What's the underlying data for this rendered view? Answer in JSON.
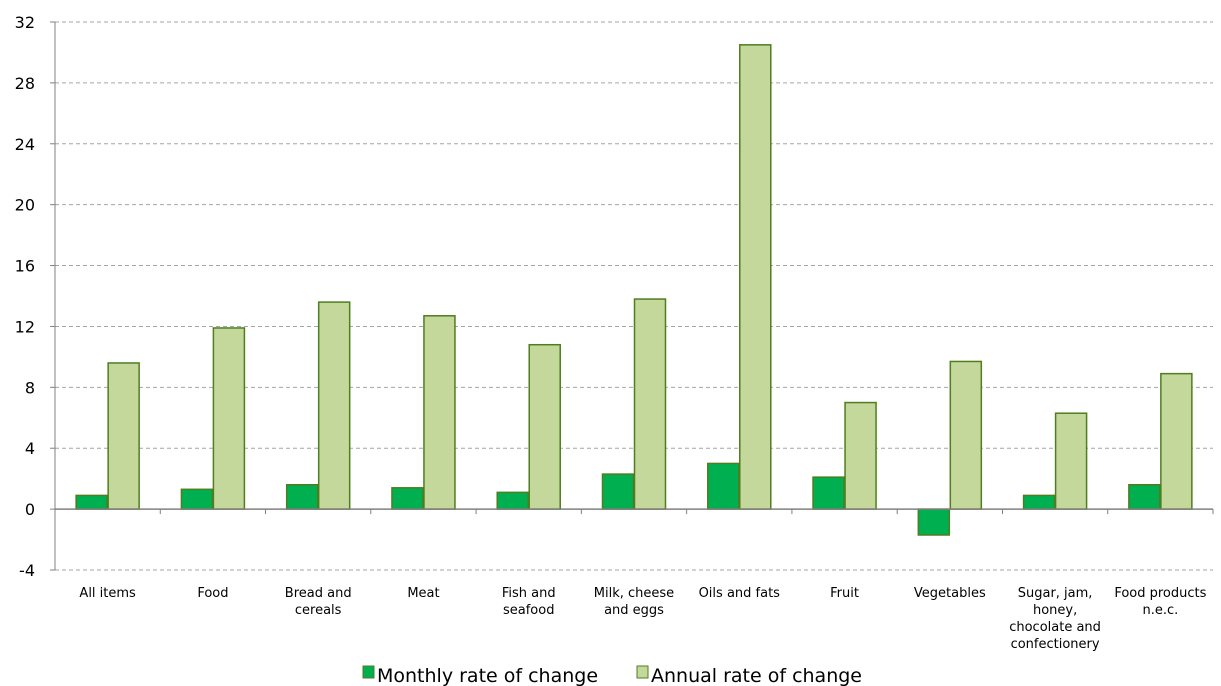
{
  "chart_data": {
    "type": "bar",
    "categories": [
      [
        "All items"
      ],
      [
        "Food"
      ],
      [
        "Bread and",
        "cereals"
      ],
      [
        "Meat"
      ],
      [
        "Fish and",
        "seafood"
      ],
      [
        "Milk, cheese",
        "and eggs"
      ],
      [
        "Oils and fats"
      ],
      [
        "Fruit"
      ],
      [
        "Vegetables"
      ],
      [
        "Sugar, jam,",
        "honey,",
        "chocolate and",
        "confectionery"
      ],
      [
        "Food products",
        "n.e.c."
      ]
    ],
    "series": [
      {
        "name": "Monthly rate of change",
        "color": "#00b050",
        "values": [
          0.9,
          1.3,
          1.6,
          1.4,
          1.1,
          2.3,
          3.0,
          2.1,
          -1.7,
          0.9,
          1.6
        ]
      },
      {
        "name": "Annual rate of change",
        "color": "#c4d89c",
        "values": [
          9.6,
          11.9,
          13.6,
          12.7,
          10.8,
          13.8,
          30.5,
          7.0,
          9.7,
          6.3,
          8.9
        ]
      }
    ],
    "ylim": [
      -4,
      32
    ],
    "yticks": [
      -4,
      0,
      4,
      8,
      12,
      16,
      20,
      24,
      28,
      32
    ],
    "grid": true,
    "legend": "bottom-center",
    "bar_outline_color": "#4f7d1f"
  }
}
